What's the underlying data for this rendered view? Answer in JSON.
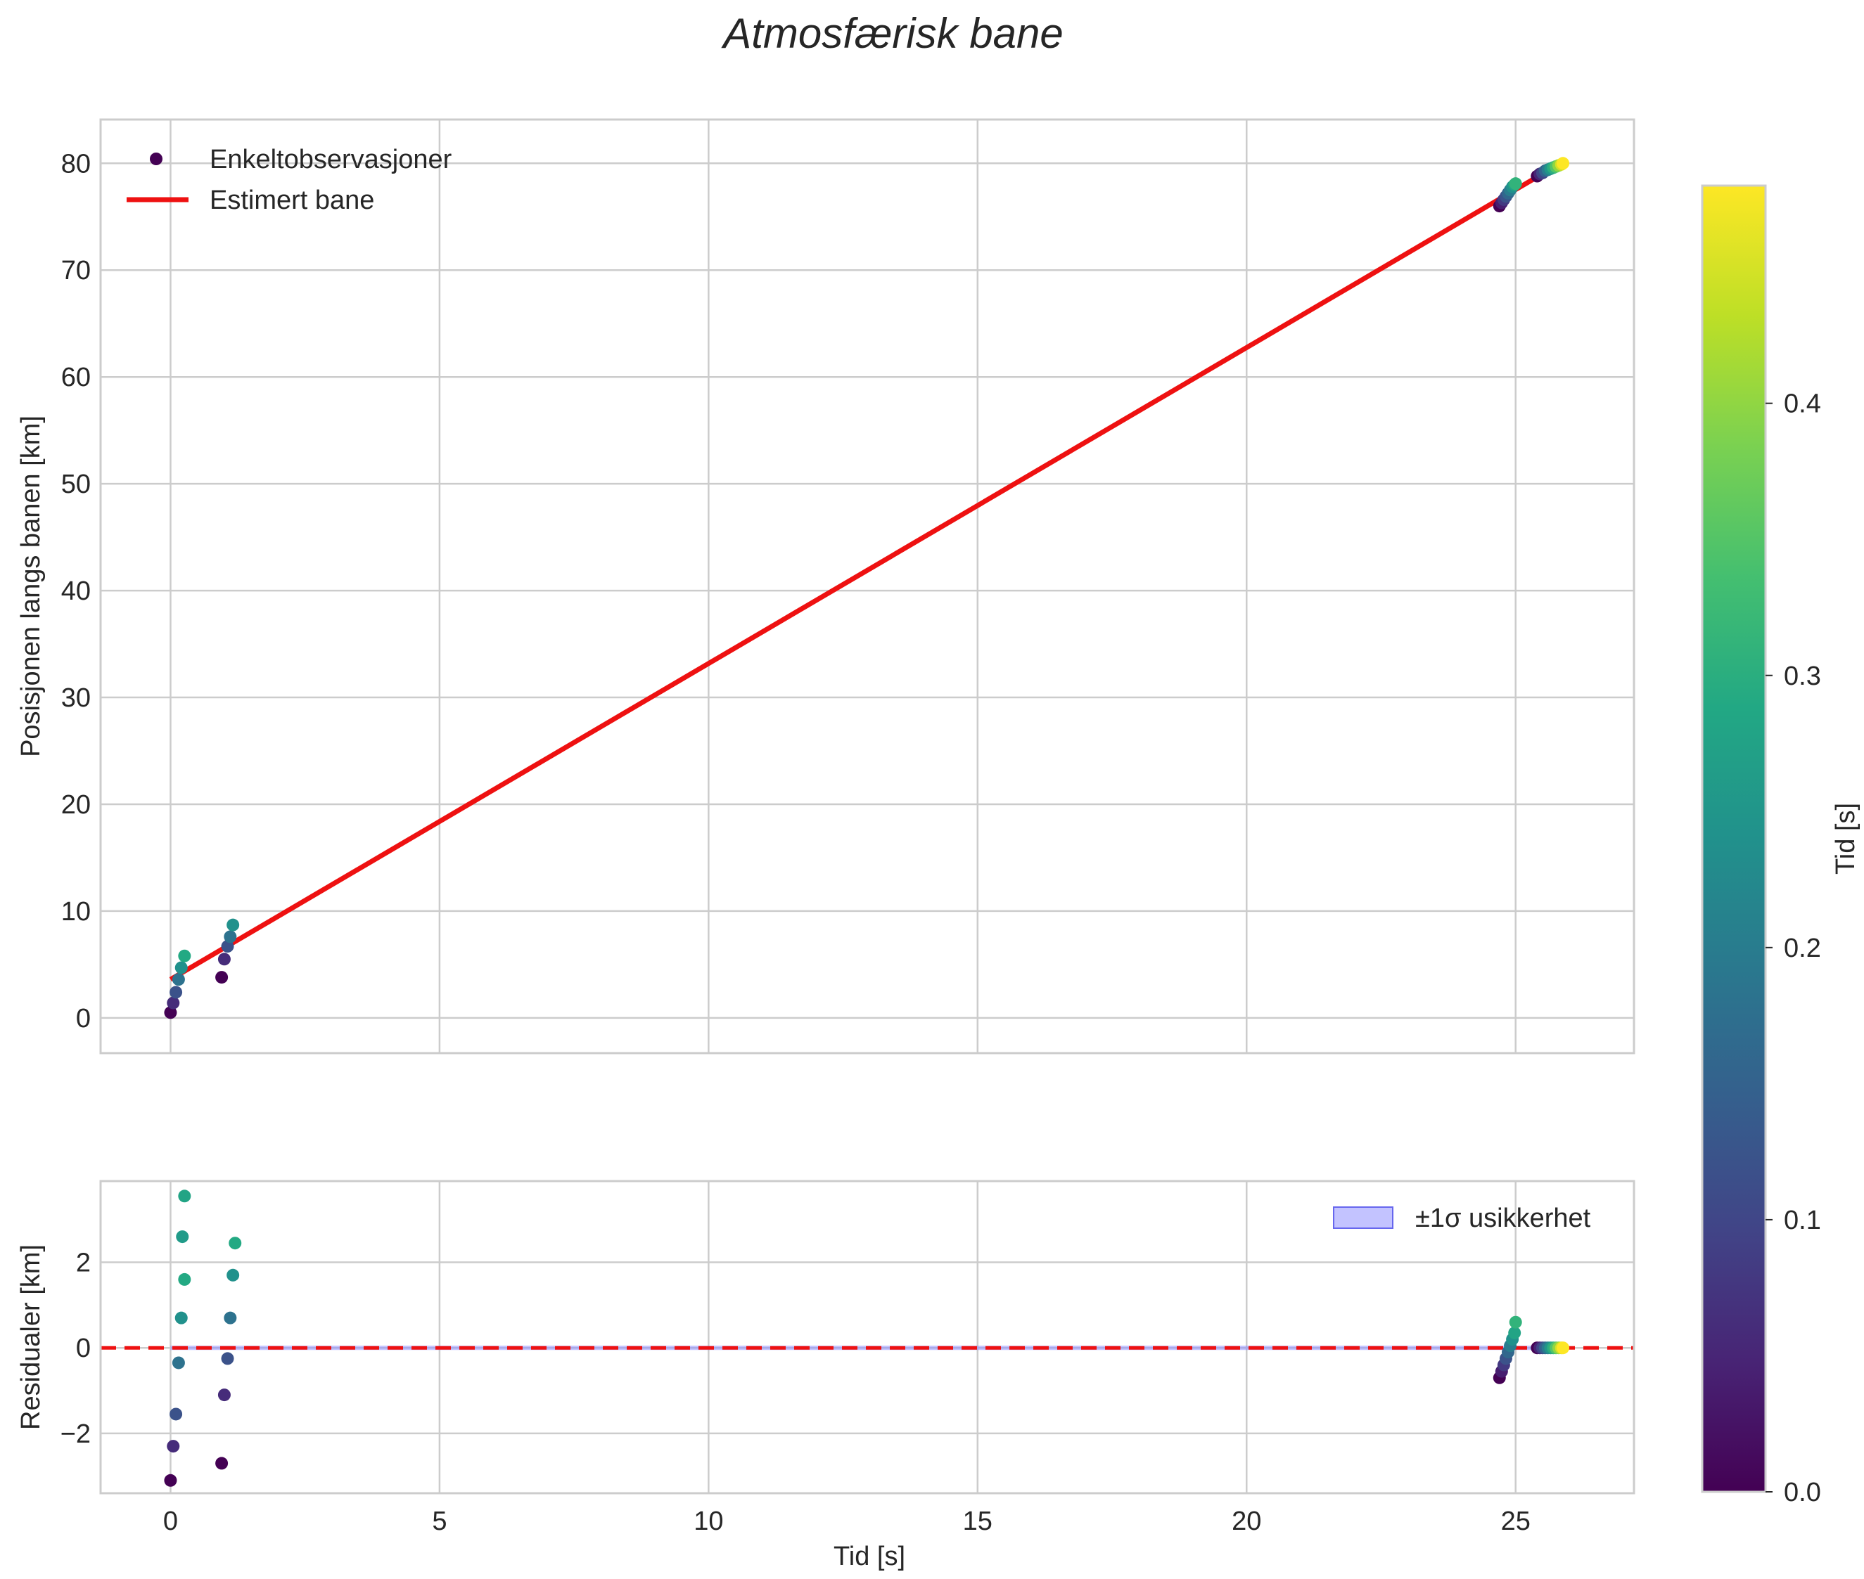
{
  "chart_data": {
    "type": "scatter",
    "title": "Atmosfærisk bane",
    "colormap": "viridis",
    "colorbar": {
      "label": "Tid [s]",
      "range": [
        0,
        0.48
      ],
      "ticks": [
        0.0,
        0.1,
        0.2,
        0.3,
        0.4
      ],
      "tick_labels": [
        "0.0",
        "0.1",
        "0.2",
        "0.3",
        "0.4"
      ]
    },
    "top_panel": {
      "xlabel": "",
      "ylabel": "Posisjonen langs banen [km]",
      "xlim": [
        -1.3,
        27.2
      ],
      "ylim": [
        -3.3,
        84.1
      ],
      "xticks": [
        0,
        5,
        10,
        15,
        20,
        25
      ],
      "yticks": [
        0,
        10,
        20,
        30,
        40,
        50,
        60,
        70,
        80
      ],
      "ytick_labels": [
        "0",
        "10",
        "20",
        "30",
        "40",
        "50",
        "60",
        "70",
        "80"
      ],
      "grid": true,
      "legend": {
        "placement": "top-left",
        "entries": [
          "Enkeltobservasjoner",
          "Estimert bane"
        ]
      },
      "fit_line": {
        "name": "Estimert bane",
        "color": "#ee1111",
        "x": [
          0.0,
          25.9
        ],
        "y": [
          3.6,
          80.2
        ]
      },
      "observations": {
        "name": "Enkeltobservasjoner",
        "t": [
          0.0,
          0.06,
          0.12,
          0.18,
          0.24,
          0.29,
          0.0,
          0.06,
          0.12,
          0.18,
          0.24,
          0.0,
          0.04,
          0.08,
          0.12,
          0.16,
          0.2,
          0.24,
          0.28,
          0.31,
          0.0,
          0.05,
          0.1,
          0.15,
          0.2,
          0.25,
          0.3,
          0.35,
          0.4,
          0.45,
          0.48
        ],
        "x": [
          0.0,
          0.05,
          0.1,
          0.15,
          0.2,
          0.26,
          0.95,
          1.0,
          1.06,
          1.11,
          1.16,
          24.7,
          24.74,
          24.78,
          24.82,
          24.86,
          24.9,
          24.94,
          24.98,
          25.0,
          25.4,
          25.45,
          25.5,
          25.55,
          25.6,
          25.65,
          25.7,
          25.75,
          25.8,
          25.85,
          25.88
        ],
        "y": [
          0.5,
          1.4,
          2.4,
          3.6,
          4.7,
          5.8,
          3.8,
          5.5,
          6.7,
          7.6,
          8.7,
          76.0,
          76.3,
          76.6,
          76.9,
          77.2,
          77.5,
          77.8,
          78.0,
          78.1,
          78.8,
          79.0,
          79.1,
          79.3,
          79.4,
          79.5,
          79.6,
          79.7,
          79.8,
          79.9,
          80.0
        ]
      }
    },
    "bottom_panel": {
      "xlabel": "Tid [s]",
      "ylabel": "Residualer [km]",
      "xlim": [
        -1.3,
        27.2
      ],
      "ylim": [
        -3.4,
        3.9
      ],
      "xticks": [
        0,
        5,
        10,
        15,
        20,
        25
      ],
      "xtick_labels": [
        "0",
        "5",
        "10",
        "15",
        "20",
        "25"
      ],
      "yticks": [
        -2,
        0,
        2
      ],
      "ytick_labels": [
        "−2",
        "0",
        "2"
      ],
      "grid": true,
      "zero_line": {
        "y": 0,
        "style": "dashed",
        "color": "#ee1111"
      },
      "band": {
        "name": "±1σ usikkerhet",
        "from": -0.05,
        "to": 0.05,
        "color": "#8888ff"
      },
      "legend": {
        "placement": "top-right",
        "entries": [
          "±1σ usikkerhet"
        ]
      },
      "residuals": {
        "t": [
          0.0,
          0.06,
          0.12,
          0.18,
          0.24,
          0.29,
          0.0,
          0.06,
          0.12,
          0.18,
          0.24,
          0.0,
          0.04,
          0.08,
          0.12,
          0.16,
          0.2,
          0.24,
          0.28,
          0.31,
          0.0,
          0.05,
          0.1,
          0.15,
          0.2,
          0.25,
          0.3,
          0.35,
          0.4,
          0.45,
          0.48
        ],
        "x": [
          0.0,
          0.05,
          0.1,
          0.15,
          0.2,
          0.26,
          0.95,
          1.0,
          1.06,
          1.11,
          1.16,
          24.7,
          24.74,
          24.78,
          24.82,
          24.86,
          24.9,
          24.94,
          24.98,
          25.0,
          25.4,
          25.45,
          25.5,
          25.55,
          25.6,
          25.65,
          25.7,
          25.75,
          25.8,
          25.85,
          25.88
        ],
        "y": [
          -3.1,
          -2.3,
          -1.55,
          -0.35,
          0.7,
          1.6,
          -2.7,
          -1.1,
          -0.25,
          0.7,
          1.7,
          -0.7,
          -0.55,
          -0.4,
          -0.25,
          -0.1,
          0.05,
          0.2,
          0.35,
          0.6,
          0.0,
          0.0,
          0.0,
          0.0,
          0.0,
          0.0,
          0.0,
          0.0,
          0.0,
          0.0,
          0.0
        ]
      },
      "extra_points": {
        "t": [
          0.28,
          0.26,
          0.29
        ],
        "x": [
          0.26,
          0.22,
          1.2
        ],
        "y": [
          3.55,
          2.6,
          2.45
        ]
      }
    }
  }
}
